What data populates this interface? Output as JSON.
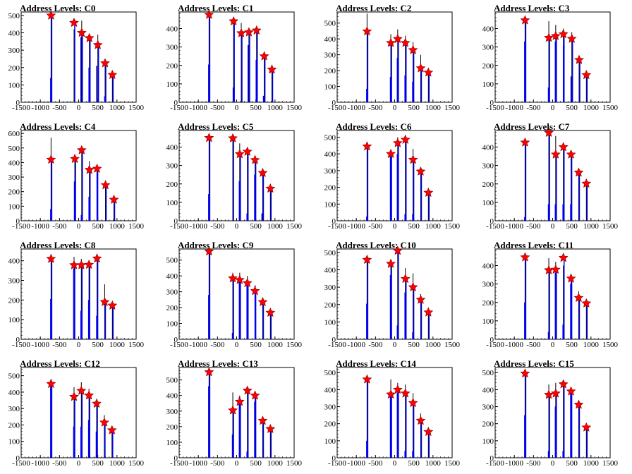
{
  "chart_data": [
    {
      "type": "bar",
      "title": "Address Levels: C0",
      "xlim": [
        -1500,
        1500
      ],
      "ylim": [
        0,
        520
      ],
      "yticks": [
        0,
        100,
        200,
        300,
        400,
        500
      ],
      "xticks": [
        -1500,
        -1000,
        -500,
        0,
        500,
        1000,
        1500
      ],
      "x": [
        -720,
        -120,
        80,
        280,
        500,
        690,
        880
      ],
      "peaks": [
        505,
        420,
        470,
        390,
        390,
        210,
        150
      ],
      "markers": [
        500,
        458,
        400,
        370,
        330,
        225,
        158
      ],
      "spikes": [
        {
          "x": -730,
          "y": 140
        },
        {
          "x": 60,
          "y": 375
        },
        {
          "x": 270,
          "y": 200
        },
        {
          "x": 470,
          "y": 210
        },
        {
          "x": 680,
          "y": 35
        }
      ]
    },
    {
      "type": "bar",
      "title": "Address Levels: C1",
      "xlim": [
        -1500,
        1500
      ],
      "ylim": [
        0,
        490
      ],
      "yticks": [
        0,
        100,
        200,
        300,
        400
      ],
      "xticks": [
        -1500,
        -1000,
        -500,
        0,
        500,
        1000,
        1500
      ],
      "x": [
        -720,
        -80,
        120,
        320,
        520,
        720,
        920
      ],
      "peaks": [
        480,
        440,
        430,
        400,
        380,
        265,
        180
      ],
      "markers": [
        475,
        440,
        375,
        380,
        390,
        250,
        178
      ],
      "spikes": [
        {
          "x": -730,
          "y": 205
        },
        {
          "x": -90,
          "y": 80
        },
        {
          "x": 300,
          "y": 310
        },
        {
          "x": 510,
          "y": 230
        },
        {
          "x": 700,
          "y": 35
        }
      ]
    },
    {
      "type": "bar",
      "title": "Address Levels: C2",
      "xlim": [
        -1500,
        1500
      ],
      "ylim": [
        0,
        570
      ],
      "yticks": [
        0,
        100,
        200,
        300,
        400,
        500
      ],
      "xticks": [
        -1500,
        -1000,
        -500,
        0,
        500,
        1000,
        1500
      ],
      "x": [
        -720,
        -100,
        80,
        280,
        480,
        680,
        880
      ],
      "peaks": [
        560,
        430,
        460,
        420,
        380,
        300,
        200
      ],
      "markers": [
        448,
        375,
        400,
        375,
        330,
        215,
        188
      ],
      "spikes": [
        {
          "x": -730,
          "y": 85
        },
        {
          "x": -110,
          "y": 160
        },
        {
          "x": 70,
          "y": 280
        },
        {
          "x": 270,
          "y": 170
        },
        {
          "x": 470,
          "y": 130
        }
      ]
    },
    {
      "type": "bar",
      "title": "Address Levels: C3",
      "xlim": [
        -1500,
        1500
      ],
      "ylim": [
        0,
        490
      ],
      "yticks": [
        0,
        100,
        200,
        300,
        400
      ],
      "xticks": [
        -1500,
        -1000,
        -500,
        0,
        500,
        1000,
        1500
      ],
      "x": [
        -720,
        -100,
        80,
        280,
        500,
        690,
        880
      ],
      "peaks": [
        450,
        440,
        420,
        400,
        380,
        240,
        170
      ],
      "markers": [
        445,
        350,
        360,
        370,
        345,
        230,
        148
      ],
      "spikes": [
        {
          "x": -730,
          "y": 330
        },
        {
          "x": -110,
          "y": 80
        },
        {
          "x": 70,
          "y": 330
        },
        {
          "x": 280,
          "y": 310
        },
        {
          "x": 480,
          "y": 140
        }
      ]
    },
    {
      "type": "bar",
      "title": "Address Levels: C4",
      "xlim": [
        -1500,
        1500
      ],
      "ylim": [
        0,
        620
      ],
      "yticks": [
        0,
        100,
        200,
        300,
        400,
        500,
        600
      ],
      "xticks": [
        -1500,
        -1000,
        -500,
        0,
        500,
        1000,
        1500
      ],
      "x": [
        -720,
        -100,
        80,
        280,
        480,
        700,
        920
      ],
      "peaks": [
        570,
        450,
        500,
        410,
        370,
        250,
        160
      ],
      "markers": [
        420,
        425,
        485,
        350,
        358,
        245,
        145
      ],
      "spikes": [
        {
          "x": -730,
          "y": 80
        },
        {
          "x": -110,
          "y": 270
        },
        {
          "x": 70,
          "y": 40
        },
        {
          "x": 270,
          "y": 165
        },
        {
          "x": 480,
          "y": 330
        }
      ]
    },
    {
      "type": "bar",
      "title": "Address Levels: C5",
      "xlim": [
        -1500,
        1500
      ],
      "ylim": [
        0,
        490
      ],
      "yticks": [
        0,
        100,
        200,
        300,
        400
      ],
      "xticks": [
        -1500,
        -1000,
        -500,
        0,
        500,
        1000,
        1500
      ],
      "x": [
        -720,
        -100,
        80,
        280,
        480,
        680,
        880
      ],
      "peaks": [
        460,
        450,
        420,
        380,
        350,
        270,
        180
      ],
      "markers": [
        450,
        448,
        362,
        375,
        330,
        260,
        175
      ],
      "spikes": [
        {
          "x": -730,
          "y": 145
        },
        {
          "x": 70,
          "y": 215
        },
        {
          "x": 270,
          "y": 40
        },
        {
          "x": 470,
          "y": 250
        },
        {
          "x": 660,
          "y": 40
        }
      ]
    },
    {
      "type": "bar",
      "title": "Address Levels: C6",
      "xlim": [
        -1500,
        1500
      ],
      "ylim": [
        0,
        540
      ],
      "yticks": [
        0,
        100,
        200,
        300,
        400,
        500
      ],
      "xticks": [
        -1500,
        -1000,
        -500,
        0,
        500,
        1000,
        1500
      ],
      "x": [
        -720,
        -100,
        80,
        280,
        480,
        680,
        880
      ],
      "peaks": [
        460,
        410,
        500,
        500,
        430,
        310,
        180
      ],
      "markers": [
        445,
        400,
        465,
        485,
        365,
        295,
        168
      ],
      "spikes": [
        {
          "x": -730,
          "y": 25
        },
        {
          "x": -110,
          "y": 390
        },
        {
          "x": 70,
          "y": 400
        },
        {
          "x": 270,
          "y": 40
        },
        {
          "x": 470,
          "y": 40
        }
      ]
    },
    {
      "type": "bar",
      "title": "Address Levels: C7",
      "xlim": [
        -1500,
        1500
      ],
      "ylim": [
        0,
        490
      ],
      "yticks": [
        0,
        100,
        200,
        300,
        400
      ],
      "xticks": [
        -1500,
        -1000,
        -500,
        0,
        500,
        1000,
        1500
      ],
      "x": [
        -720,
        -100,
        80,
        280,
        480,
        680,
        880
      ],
      "peaks": [
        430,
        480,
        460,
        410,
        380,
        280,
        210
      ],
      "markers": [
        425,
        478,
        360,
        400,
        360,
        262,
        202
      ],
      "spikes": [
        {
          "x": -730,
          "y": 20
        },
        {
          "x": -110,
          "y": 90
        },
        {
          "x": 70,
          "y": 90
        },
        {
          "x": 270,
          "y": 90
        },
        {
          "x": 470,
          "y": 90
        }
      ]
    },
    {
      "type": "bar",
      "title": "Address Levels: C8",
      "xlim": [
        -1500,
        1500
      ],
      "ylim": [
        0,
        460
      ],
      "yticks": [
        0,
        100,
        200,
        300,
        400
      ],
      "xticks": [
        -1500,
        -1000,
        -500,
        0,
        500,
        1000,
        1500
      ],
      "x": [
        -720,
        -120,
        70,
        270,
        480,
        680,
        880
      ],
      "peaks": [
        410,
        420,
        410,
        400,
        410,
        280,
        180
      ],
      "markers": [
        410,
        378,
        378,
        380,
        412,
        190,
        172
      ],
      "spikes": [
        {
          "x": -730,
          "y": 205
        },
        {
          "x": -130,
          "y": 360
        },
        {
          "x": 60,
          "y": 145
        },
        {
          "x": 260,
          "y": 200
        },
        {
          "x": 470,
          "y": 120
        }
      ]
    },
    {
      "type": "bar",
      "title": "Address Levels: C9",
      "xlim": [
        -1500,
        1500
      ],
      "ylim": [
        0,
        570
      ],
      "yticks": [
        0,
        100,
        200,
        300,
        400,
        500
      ],
      "xticks": [
        -1500,
        -1000,
        -500,
        0,
        500,
        1000,
        1500
      ],
      "x": [
        -720,
        -100,
        80,
        280,
        480,
        680,
        880
      ],
      "peaks": [
        570,
        420,
        420,
        400,
        340,
        260,
        180
      ],
      "markers": [
        555,
        385,
        375,
        355,
        305,
        235,
        168
      ],
      "spikes": [
        {
          "x": -730,
          "y": 280
        },
        {
          "x": -110,
          "y": 40
        },
        {
          "x": 70,
          "y": 360
        },
        {
          "x": 270,
          "y": 350
        },
        {
          "x": 480,
          "y": 340
        }
      ]
    },
    {
      "type": "bar",
      "title": "Address Levels: C10",
      "xlim": [
        -1500,
        1500
      ],
      "ylim": [
        0,
        520
      ],
      "yticks": [
        0,
        100,
        200,
        300,
        400,
        500
      ],
      "xticks": [
        -1500,
        -1000,
        -500,
        0,
        500,
        1000,
        1500
      ],
      "x": [
        -720,
        -100,
        80,
        280,
        480,
        680,
        880
      ],
      "peaks": [
        470,
        440,
        520,
        410,
        380,
        260,
        180
      ],
      "markers": [
        458,
        435,
        510,
        348,
        300,
        228,
        155
      ],
      "spikes": [
        {
          "x": -730,
          "y": 205
        },
        {
          "x": -110,
          "y": 370
        },
        {
          "x": 70,
          "y": 80
        },
        {
          "x": 270,
          "y": 270
        },
        {
          "x": 470,
          "y": 40
        }
      ]
    },
    {
      "type": "bar",
      "title": "Address Levels: C11",
      "xlim": [
        -1500,
        1500
      ],
      "ylim": [
        0,
        490
      ],
      "yticks": [
        0,
        100,
        200,
        300,
        400
      ],
      "xticks": [
        -1500,
        -1000,
        -500,
        0,
        500,
        1000,
        1500
      ],
      "x": [
        -720,
        -100,
        80,
        280,
        480,
        680,
        880
      ],
      "peaks": [
        450,
        440,
        420,
        400,
        350,
        260,
        190
      ],
      "markers": [
        445,
        375,
        378,
        442,
        330,
        225,
        195
      ],
      "spikes": [
        {
          "x": -730,
          "y": 200
        },
        {
          "x": -110,
          "y": 40
        },
        {
          "x": 70,
          "y": 360
        },
        {
          "x": 270,
          "y": 80
        },
        {
          "x": 470,
          "y": 300
        }
      ]
    },
    {
      "type": "bar",
      "title": "Address Levels: C12",
      "xlim": [
        -1500,
        1500
      ],
      "ylim": [
        0,
        550
      ],
      "yticks": [
        0,
        100,
        200,
        300,
        400,
        500
      ],
      "xticks": [
        -1500,
        -1000,
        -500,
        0,
        500,
        1000,
        1500
      ],
      "x": [
        -720,
        -120,
        70,
        270,
        470,
        670,
        870
      ],
      "peaks": [
        480,
        430,
        460,
        420,
        360,
        260,
        190
      ],
      "markers": [
        450,
        372,
        408,
        380,
        330,
        215,
        168
      ],
      "spikes": [
        {
          "x": -730,
          "y": 470
        },
        {
          "x": -130,
          "y": 190
        },
        {
          "x": 60,
          "y": 190
        },
        {
          "x": 260,
          "y": 230
        },
        {
          "x": 460,
          "y": 160
        }
      ]
    },
    {
      "type": "bar",
      "title": "Address Levels: C13",
      "xlim": [
        -1500,
        1500
      ],
      "ylim": [
        0,
        580
      ],
      "yticks": [
        0,
        100,
        200,
        300,
        400,
        500
      ],
      "xticks": [
        -1500,
        -1000,
        -500,
        0,
        500,
        1000,
        1500
      ],
      "x": [
        -720,
        -100,
        80,
        280,
        480,
        680,
        880
      ],
      "peaks": [
        560,
        420,
        400,
        440,
        400,
        260,
        190
      ],
      "markers": [
        550,
        305,
        360,
        432,
        400,
        238,
        185
      ],
      "spikes": [
        {
          "x": -730,
          "y": 460
        },
        {
          "x": -110,
          "y": 150
        },
        {
          "x": 70,
          "y": 390
        },
        {
          "x": 270,
          "y": 40
        },
        {
          "x": 470,
          "y": 360
        }
      ]
    },
    {
      "type": "bar",
      "title": "Address Levels: C14",
      "xlim": [
        -1500,
        1500
      ],
      "ylim": [
        0,
        530
      ],
      "yticks": [
        0,
        100,
        200,
        300,
        400,
        500
      ],
      "xticks": [
        -1500,
        -1000,
        -500,
        0,
        500,
        1000,
        1500
      ],
      "x": [
        -720,
        -100,
        80,
        280,
        480,
        680,
        880
      ],
      "peaks": [
        470,
        460,
        440,
        430,
        380,
        260,
        170
      ],
      "markers": [
        460,
        372,
        400,
        378,
        322,
        218,
        152
      ],
      "spikes": [
        {
          "x": -730,
          "y": 100
        },
        {
          "x": -110,
          "y": 380
        },
        {
          "x": 70,
          "y": 380
        },
        {
          "x": 270,
          "y": 40
        },
        {
          "x": 470,
          "y": 40
        }
      ]
    },
    {
      "type": "bar",
      "title": "Address Levels: C15",
      "xlim": [
        -1500,
        1500
      ],
      "ylim": [
        0,
        530
      ],
      "yticks": [
        0,
        100,
        200,
        300,
        400,
        500
      ],
      "xticks": [
        -1500,
        -1000,
        -500,
        0,
        500,
        1000,
        1500
      ],
      "x": [
        -720,
        -100,
        80,
        280,
        480,
        680,
        880
      ],
      "peaks": [
        500,
        430,
        440,
        440,
        410,
        330,
        190
      ],
      "markers": [
        495,
        370,
        378,
        432,
        390,
        312,
        178
      ],
      "spikes": [
        {
          "x": -730,
          "y": 250
        },
        {
          "x": -110,
          "y": 40
        },
        {
          "x": 70,
          "y": 300
        },
        {
          "x": 270,
          "y": 40
        },
        {
          "x": 470,
          "y": 380
        }
      ]
    }
  ],
  "colors": {
    "bar": "#0000ee",
    "line": "#000000",
    "marker": "#ff0000",
    "marker_edge": "#880000"
  }
}
